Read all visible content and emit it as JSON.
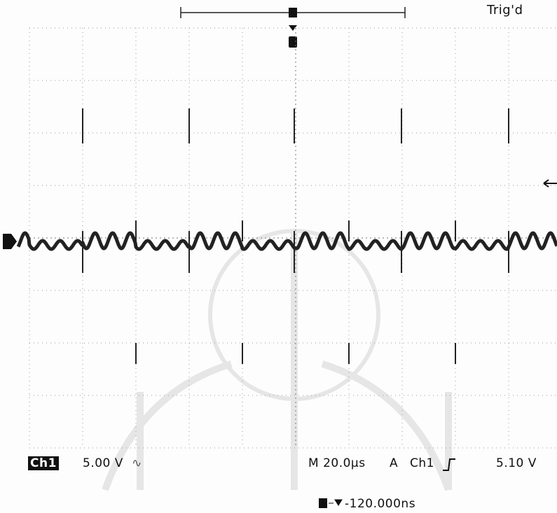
{
  "status": "Trig'd",
  "readout": {
    "channel": "Ch1",
    "scale": "5.00 V",
    "timebase": "M 20.0µs",
    "trigger_mode": "A",
    "trigger_source": "Ch1",
    "trigger_level": "5.10 V",
    "delay": "-120.000ns"
  }
}
